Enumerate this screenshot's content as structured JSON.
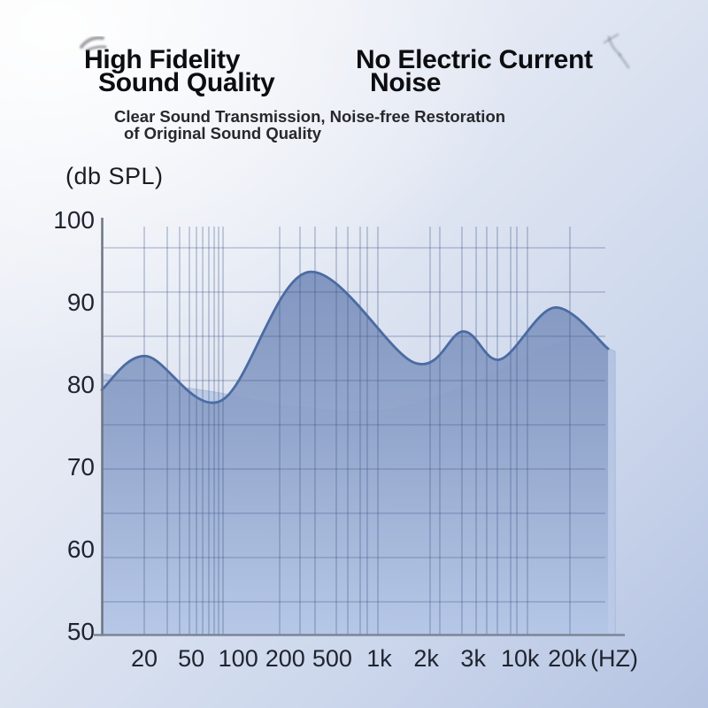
{
  "header": {
    "title_left": [
      "High Fidelity",
      "Sound Quality"
    ],
    "title_right": [
      "No Electric Current",
      "Noise"
    ],
    "subtitle": [
      "Clear Sound Transmission, Noise-free Restoration",
      "of Original Sound Quality"
    ]
  },
  "chart_data": {
    "type": "area",
    "title": "",
    "y_axis_label": "(db SPL)",
    "x_unit_label": "(HZ)",
    "ylim": [
      50,
      100
    ],
    "y_ticks": [
      100,
      90,
      80,
      70,
      60,
      50
    ],
    "x_tick_labels": [
      "20",
      "50",
      "100",
      "200",
      "500",
      "1k",
      "2k",
      "3k",
      "10k",
      "20k"
    ],
    "x_scale_note": "stylized logarithmic frequency axis, 20 Hz - 20 kHz",
    "grid": {
      "horizontal": true,
      "vertical": true,
      "vertical_line_xf": [
        0.0835,
        0.1287,
        0.153,
        0.1722,
        0.1861,
        0.1983,
        0.2104,
        0.2209,
        0.2296,
        0.2383,
        0.3496,
        0.3896,
        0.4191,
        0.4609,
        0.4835,
        0.5078,
        0.5217,
        0.5426,
        0.6452,
        0.6643,
        0.7078,
        0.7357,
        0.7565,
        0.7774,
        0.8035,
        0.8157,
        0.8365,
        0.92
      ]
    },
    "series": [
      {
        "name": "frequency-response-main",
        "unit": "db SPL",
        "points": [
          [
            0.0,
            79.3
          ],
          [
            0.087,
            83.4
          ],
          [
            0.235,
            78.0
          ],
          [
            0.405,
            93.6
          ],
          [
            0.614,
            82.6
          ],
          [
            0.71,
            86.4
          ],
          [
            0.783,
            83.0
          ],
          [
            0.89,
            89.3
          ],
          [
            0.995,
            84.3
          ]
        ]
      },
      {
        "name": "frequency-response-soft-layer",
        "unit": "db SPL",
        "points": [
          [
            0.0,
            81.3
          ],
          [
            0.096,
            80.2
          ],
          [
            0.226,
            79.0
          ],
          [
            0.374,
            77.3
          ],
          [
            0.548,
            76.8
          ],
          [
            0.704,
            79.5
          ],
          [
            0.826,
            83.0
          ],
          [
            0.93,
            85.5
          ],
          [
            1.009,
            84.0
          ]
        ]
      }
    ],
    "colors": {
      "area_top": "#7b91bd",
      "area_mid": "#8fa2c9",
      "area_bottom": "#b4c6e6",
      "area_soft_top": "#9fb5da",
      "area_soft_bottom": "#b7c8e8",
      "curve_stroke": "#4b6ba2",
      "grid_stroke": "rgba(55,80,130,0.45)",
      "axis_y_stroke": "#6d7483",
      "axis_x_stroke": "#7d8697",
      "text": "#1f2430"
    }
  }
}
